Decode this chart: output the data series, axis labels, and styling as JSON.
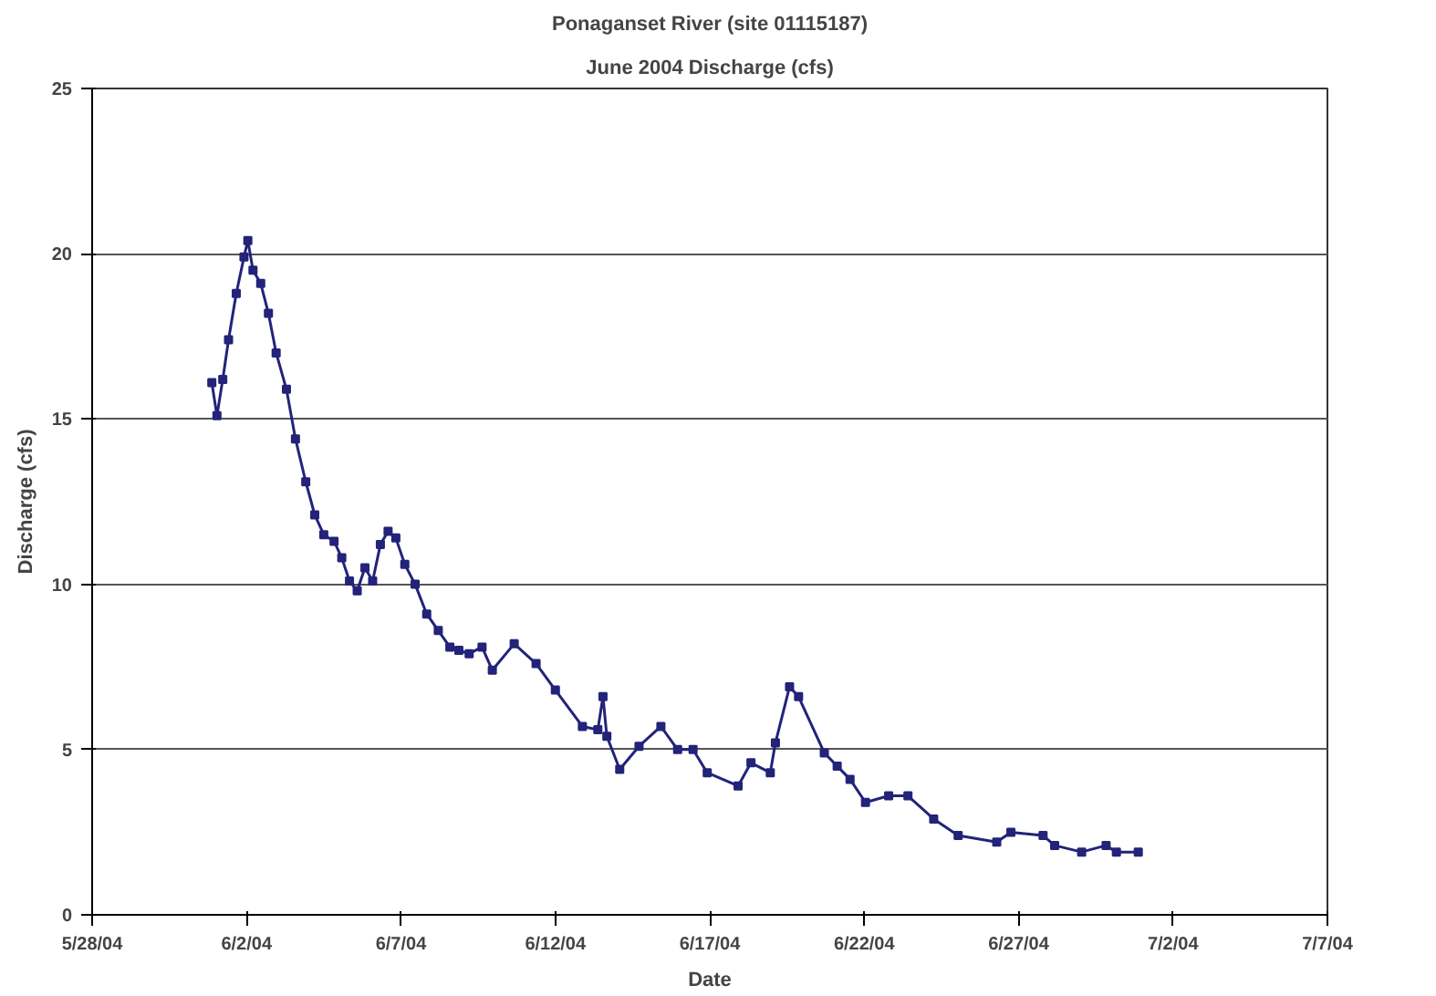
{
  "chart_data": {
    "type": "line",
    "title": "Ponaganset River (site 01115187)",
    "subtitle": "June 2004 Discharge (cfs)",
    "xlabel": "Date",
    "ylabel": "Discharge (cfs)",
    "x": [
      "2004-05-31T21:00",
      "2004-06-01T01:00",
      "2004-06-01T05:30",
      "2004-06-01T10:00",
      "2004-06-01T16:00",
      "2004-06-01T22:00",
      "2004-06-02T01:00",
      "2004-06-02T05:00",
      "2004-06-02T11:00",
      "2004-06-02T17:00",
      "2004-06-02T23:00",
      "2004-06-03T07:00",
      "2004-06-03T14:00",
      "2004-06-03T22:00",
      "2004-06-04T05:00",
      "2004-06-04T12:00",
      "2004-06-04T20:00",
      "2004-06-05T02:00",
      "2004-06-05T08:00",
      "2004-06-05T14:00",
      "2004-06-05T20:00",
      "2004-06-06T02:00",
      "2004-06-06T08:00",
      "2004-06-06T14:00",
      "2004-06-06T20:00",
      "2004-06-07T03:00",
      "2004-06-07T11:00",
      "2004-06-07T20:00",
      "2004-06-08T05:00",
      "2004-06-08T14:00",
      "2004-06-08T21:00",
      "2004-06-09T05:00",
      "2004-06-09T15:00",
      "2004-06-09T23:00",
      "2004-06-10T16:00",
      "2004-06-11T09:00",
      "2004-06-12T00:00",
      "2004-06-12T21:00",
      "2004-06-13T09:00",
      "2004-06-13T13:00",
      "2004-06-13T16:00",
      "2004-06-14T02:00",
      "2004-06-14T17:00",
      "2004-06-15T10:00",
      "2004-06-15T23:00",
      "2004-06-16T11:00",
      "2004-06-16T22:00",
      "2004-06-17T22:00",
      "2004-06-18T08:00",
      "2004-06-18T23:00",
      "2004-06-19T03:00",
      "2004-06-19T14:00",
      "2004-06-19T21:00",
      "2004-06-20T17:00",
      "2004-06-21T03:00",
      "2004-06-21T13:00",
      "2004-06-22T01:00",
      "2004-06-22T19:00",
      "2004-06-23T10:00",
      "2004-06-24T06:00",
      "2004-06-25T01:00",
      "2004-06-26T07:00",
      "2004-06-26T18:00",
      "2004-06-27T19:00",
      "2004-06-28T04:00",
      "2004-06-29T01:00",
      "2004-06-29T20:00",
      "2004-06-30T04:00",
      "2004-06-30T21:00"
    ],
    "series": [
      {
        "color": "#23237a",
        "values": [
          16.1,
          15.1,
          16.2,
          17.4,
          18.8,
          19.9,
          20.4,
          19.5,
          19.1,
          18.2,
          17.0,
          15.9,
          14.4,
          13.1,
          12.1,
          11.5,
          11.3,
          10.8,
          10.1,
          9.8,
          10.5,
          10.1,
          11.2,
          11.6,
          11.4,
          10.6,
          10.0,
          9.1,
          8.6,
          8.1,
          8.0,
          7.9,
          8.1,
          7.4,
          8.2,
          7.6,
          6.8,
          5.7,
          5.6,
          6.6,
          5.4,
          4.4,
          5.1,
          5.7,
          5.0,
          5.0,
          4.3,
          3.9,
          4.6,
          4.3,
          5.2,
          6.9,
          6.6,
          4.9,
          4.5,
          4.1,
          3.4,
          3.6,
          3.6,
          2.9,
          2.4,
          2.2,
          2.5,
          2.4,
          2.1,
          1.9,
          2.1,
          1.9,
          1.9
        ]
      }
    ],
    "xlim": [
      "2004-05-28",
      "2004-07-07"
    ],
    "xticks": [
      {
        "value": "2004-05-28",
        "label": "5/28/04"
      },
      {
        "value": "2004-06-02",
        "label": "6/2/04"
      },
      {
        "value": "2004-06-07",
        "label": "6/7/04"
      },
      {
        "value": "2004-06-12",
        "label": "6/12/04"
      },
      {
        "value": "2004-06-17",
        "label": "6/17/04"
      },
      {
        "value": "2004-06-22",
        "label": "6/22/04"
      },
      {
        "value": "2004-06-27",
        "label": "6/27/04"
      },
      {
        "value": "2004-07-02",
        "label": "7/2/04"
      },
      {
        "value": "2004-07-07",
        "label": "7/7/04"
      }
    ],
    "ylim": [
      0,
      25
    ],
    "yticks": [
      0,
      5,
      10,
      15,
      20,
      25
    ],
    "grid": "y",
    "marker": "square",
    "line_style": "solid"
  }
}
